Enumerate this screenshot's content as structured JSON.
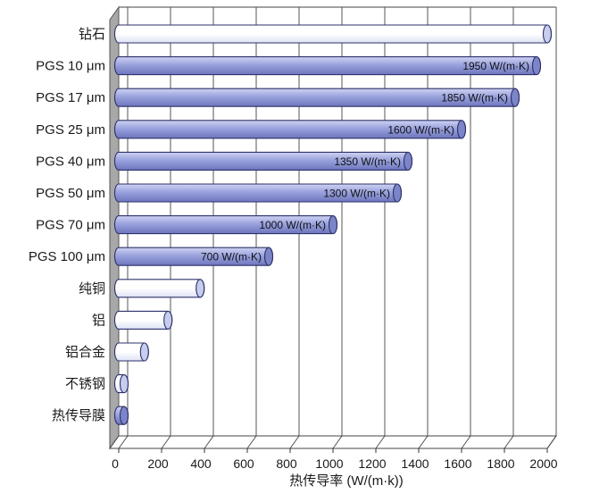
{
  "chart_data": {
    "type": "bar",
    "orientation": "horizontal",
    "categories": [
      "钻石",
      "PGS 10 μm",
      "PGS 17 μm",
      "PGS 25 μm",
      "PGS 40 μm",
      "PGS 50 μm",
      "PGS 70 μm",
      "PGS 100 μm",
      "纯铜",
      "铝",
      "铝合金",
      "不锈钢",
      "热传导膜"
    ],
    "values": [
      2000,
      1950,
      1850,
      1600,
      1350,
      1300,
      1000,
      700,
      380,
      230,
      120,
      15,
      5
    ],
    "value_labels": [
      "",
      "1950 W/(m·K)",
      "1850 W/(m·K)",
      "1600 W/(m·K)",
      "1350 W/(m·K)",
      "1300 W/(m·K)",
      "1000 W/(m·K)",
      "700 W/(m·K)",
      "",
      "",
      "",
      "",
      ""
    ],
    "bar_styles": [
      "plain",
      "pgs",
      "pgs",
      "pgs",
      "pgs",
      "pgs",
      "pgs",
      "pgs",
      "plain",
      "plain",
      "plain",
      "plain",
      "pgs"
    ],
    "xticks": [
      "0",
      "200",
      "400",
      "600",
      "800",
      "1000",
      "1200",
      "1400",
      "1600",
      "1800",
      "2000"
    ],
    "xlim": [
      0,
      2000
    ],
    "xlabel": "热传导率 (W/(m·k))",
    "title": "",
    "grid": true,
    "colors": {
      "pgs_fill_light": "#cfd3f2",
      "pgs_fill": "#9aa2dd",
      "pgs_fill_dark": "#6d76bd",
      "pgs_cap": "#7c85c8",
      "plain_fill_light": "#ffffff",
      "plain_fill_dark": "#dde1f4",
      "plain_cap": "#c7cdee",
      "bar_outline": "#2e326b",
      "wall": "#a8a8a8",
      "grid": "#444444"
    }
  }
}
